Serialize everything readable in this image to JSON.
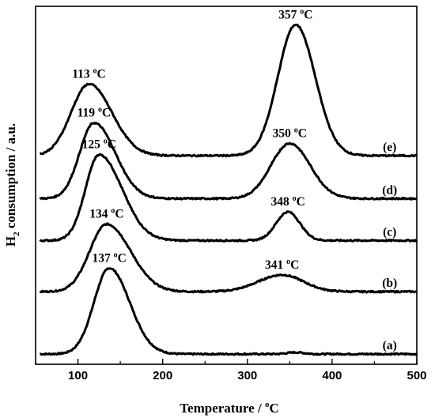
{
  "chart_data": {
    "type": "line",
    "title": "",
    "xlabel_main": "Temperature / ",
    "xlabel_unit_sup": "o",
    "xlabel_unit": "C",
    "ylabel_pre": "H",
    "ylabel_sub": "2",
    "ylabel_post": " consumption / a.u.",
    "xlim": [
      50,
      500
    ],
    "x_ticks": [
      100,
      200,
      300,
      400,
      500
    ],
    "grid": false,
    "series": [
      {
        "name": "(a)",
        "baseline": 0.5,
        "peaks": [
          {
            "x": 137,
            "height": 4.2,
            "sigma_left": 18,
            "sigma_right": 24,
            "label": "137 ",
            "label_sup": "o",
            "label_unit": "C"
          },
          {
            "x": 357,
            "height": 0.08,
            "sigma_left": 10,
            "sigma_right": 10
          }
        ]
      },
      {
        "name": "(b)",
        "baseline": 3.55,
        "peaks": [
          {
            "x": 134,
            "height": 3.3,
            "sigma_left": 20,
            "sigma_right": 28,
            "label": "134 ",
            "label_sup": "o",
            "label_unit": "C"
          },
          {
            "x": 341,
            "height": 0.82,
            "sigma_left": 28,
            "sigma_right": 25,
            "label": "341 ",
            "label_sup": "o",
            "label_unit": "C"
          }
        ]
      },
      {
        "name": "(c)",
        "baseline": 6.05,
        "peaks": [
          {
            "x": 125,
            "height": 4.2,
            "sigma_left": 16,
            "sigma_right": 27,
            "label": "125 ",
            "label_sup": "o",
            "label_unit": "C"
          },
          {
            "x": 348,
            "height": 1.4,
            "sigma_left": 14,
            "sigma_right": 14,
            "label": "348 ",
            "label_sup": "o",
            "label_unit": "C"
          }
        ]
      },
      {
        "name": "(d)",
        "baseline": 8.1,
        "peaks": [
          {
            "x": 119,
            "height": 3.7,
            "sigma_left": 17,
            "sigma_right": 25,
            "label": "119 ",
            "label_sup": "o",
            "label_unit": "C"
          },
          {
            "x": 350,
            "height": 2.7,
            "sigma_left": 22,
            "sigma_right": 24,
            "label": "350 ",
            "label_sup": "o",
            "label_unit": "C"
          }
        ]
      },
      {
        "name": "(e)",
        "baseline": 10.2,
        "peaks": [
          {
            "x": 113,
            "height": 3.5,
            "sigma_left": 21,
            "sigma_right": 27,
            "label": "113 ",
            "label_sup": "o",
            "label_unit": "C"
          },
          {
            "x": 357,
            "height": 6.4,
            "sigma_left": 21,
            "sigma_right": 23,
            "label": "357 ",
            "label_sup": "o",
            "label_unit": "C"
          }
        ]
      }
    ]
  }
}
